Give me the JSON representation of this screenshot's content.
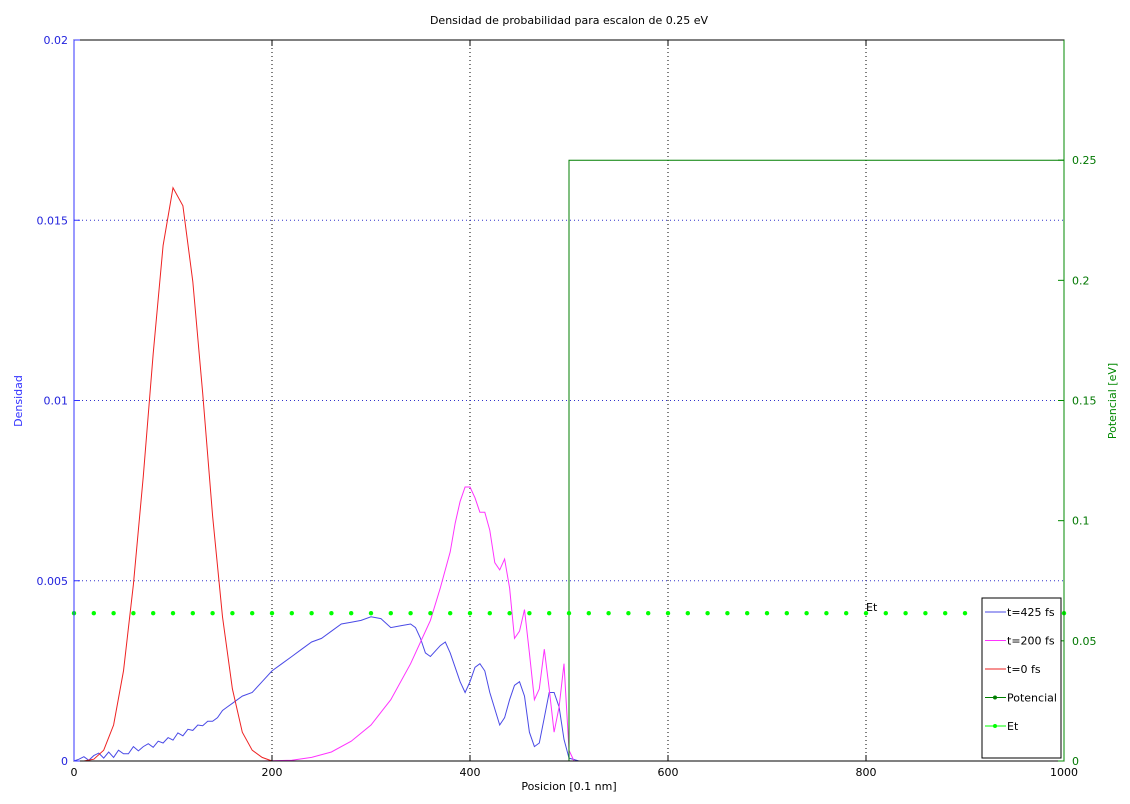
{
  "chart_data": {
    "type": "line",
    "title": "Densidad de probabilidad para escalon de 0.25 eV",
    "xlabel": "Posicion [0.1 nm]",
    "ylabel_left": "Densidad",
    "ylabel_right": "Potencial [eV]",
    "xlim": [
      0,
      1000
    ],
    "ylim_left": [
      0,
      0.02
    ],
    "ylim_right": [
      0,
      0.3
    ],
    "x_ticks": [
      {
        "value": 0,
        "label": "0"
      },
      {
        "value": 200,
        "label": "200"
      },
      {
        "value": 400,
        "label": "400"
      },
      {
        "value": 600,
        "label": "600"
      },
      {
        "value": 800,
        "label": "800"
      },
      {
        "value": 1000,
        "label": "1000"
      }
    ],
    "y_left_ticks": [
      {
        "value": 0,
        "label": "0"
      },
      {
        "value": 0.005,
        "label": "0.005"
      },
      {
        "value": 0.01,
        "label": "0.01"
      },
      {
        "value": 0.015,
        "label": "0.015"
      },
      {
        "value": 0.02,
        "label": "0.02"
      }
    ],
    "y_right_ticks": [
      {
        "value": 0,
        "label": "0"
      },
      {
        "value": 0.05,
        "label": "0.05"
      },
      {
        "value": 0.1,
        "label": "0.1"
      },
      {
        "value": 0.15,
        "label": "0.15"
      },
      {
        "value": 0.2,
        "label": "0.2"
      },
      {
        "value": 0.25,
        "label": "0.25"
      }
    ],
    "grid": true,
    "legend_position": "bottom-right",
    "annotation": {
      "text": "Et",
      "x": 800,
      "y": 0.0041
    },
    "series": [
      {
        "name": "t=425 fs",
        "axis": "left",
        "color": "#4a4ae6",
        "x": [
          0,
          5,
          10,
          15,
          20,
          25,
          30,
          35,
          40,
          45,
          50,
          55,
          60,
          65,
          70,
          75,
          80,
          85,
          90,
          95,
          100,
          105,
          110,
          115,
          120,
          125,
          130,
          135,
          140,
          145,
          150,
          155,
          160,
          170,
          180,
          190,
          200,
          210,
          220,
          230,
          240,
          250,
          260,
          270,
          280,
          290,
          300,
          310,
          320,
          330,
          340,
          345,
          350,
          355,
          360,
          370,
          375,
          380,
          390,
          395,
          400,
          405,
          410,
          415,
          420,
          430,
          435,
          440,
          445,
          450,
          455,
          460,
          465,
          470,
          475,
          480,
          485,
          490,
          495,
          500,
          510,
          600,
          800,
          1000
        ],
        "y": [
          0,
          5e-05,
          0.00012,
          2e-05,
          0.00015,
          0.00022,
          8e-05,
          0.00025,
          0.0001,
          0.0003,
          0.0002,
          0.0002,
          0.0004,
          0.00028,
          0.0004,
          0.00048,
          0.00038,
          0.00055,
          0.0005,
          0.00065,
          0.00058,
          0.00078,
          0.0007,
          0.00088,
          0.00085,
          0.001,
          0.00098,
          0.0011,
          0.0011,
          0.0012,
          0.0014,
          0.0015,
          0.0016,
          0.0018,
          0.0019,
          0.0022,
          0.0025,
          0.0027,
          0.0029,
          0.0031,
          0.0033,
          0.0034,
          0.0036,
          0.0038,
          0.00385,
          0.0039,
          0.004,
          0.00395,
          0.0037,
          0.00375,
          0.0038,
          0.0037,
          0.0034,
          0.003,
          0.0029,
          0.0032,
          0.0033,
          0.003,
          0.0022,
          0.0019,
          0.0022,
          0.0026,
          0.0027,
          0.0025,
          0.0019,
          0.001,
          0.0012,
          0.0017,
          0.0021,
          0.0022,
          0.0018,
          0.0008,
          0.0004,
          0.0005,
          0.0012,
          0.0019,
          0.0019,
          0.0015,
          0.0006,
          8e-05,
          0,
          0,
          0,
          0
        ]
      },
      {
        "name": "t=200 fs",
        "axis": "left",
        "color": "#ff33ff",
        "x": [
          0,
          190,
          220,
          240,
          260,
          280,
          300,
          320,
          340,
          360,
          370,
          380,
          385,
          390,
          395,
          400,
          405,
          410,
          415,
          420,
          425,
          430,
          435,
          440,
          445,
          450,
          455,
          460,
          465,
          470,
          475,
          480,
          485,
          490,
          495,
          500,
          505,
          600,
          800,
          1000
        ],
        "y": [
          0,
          0,
          2e-05,
          0.0001,
          0.00025,
          0.00055,
          0.001,
          0.0017,
          0.0027,
          0.0039,
          0.0048,
          0.0058,
          0.0066,
          0.0072,
          0.0076,
          0.0076,
          0.0073,
          0.0069,
          0.0069,
          0.0064,
          0.0055,
          0.0053,
          0.0056,
          0.0048,
          0.0034,
          0.0036,
          0.0042,
          0.003,
          0.0017,
          0.002,
          0.0031,
          0.002,
          0.0008,
          0.0015,
          0.0027,
          0.0003,
          0,
          0,
          0,
          0
        ]
      },
      {
        "name": "t=0 fs",
        "axis": "left",
        "color": "#ee2222",
        "x": [
          0,
          10,
          20,
          30,
          40,
          50,
          60,
          70,
          80,
          90,
          100,
          110,
          120,
          130,
          140,
          150,
          160,
          170,
          180,
          190,
          200,
          1000
        ],
        "y": [
          0,
          0,
          5e-05,
          0.0003,
          0.001,
          0.0025,
          0.0049,
          0.0079,
          0.0113,
          0.0143,
          0.0159,
          0.0154,
          0.0133,
          0.0102,
          0.0068,
          0.004,
          0.002,
          0.0008,
          0.0003,
          0.0001,
          0,
          0
        ]
      },
      {
        "name": "Potencial",
        "axis": "right",
        "color": "#007f00",
        "x": [
          0,
          500,
          500,
          1000
        ],
        "y": [
          0,
          0,
          0.25,
          0.25
        ]
      },
      {
        "name": "Et",
        "axis": "left",
        "color": "#00ff00",
        "dotted": true,
        "x": [
          0,
          1000
        ],
        "y": [
          0.0041,
          0.0041
        ]
      }
    ]
  }
}
